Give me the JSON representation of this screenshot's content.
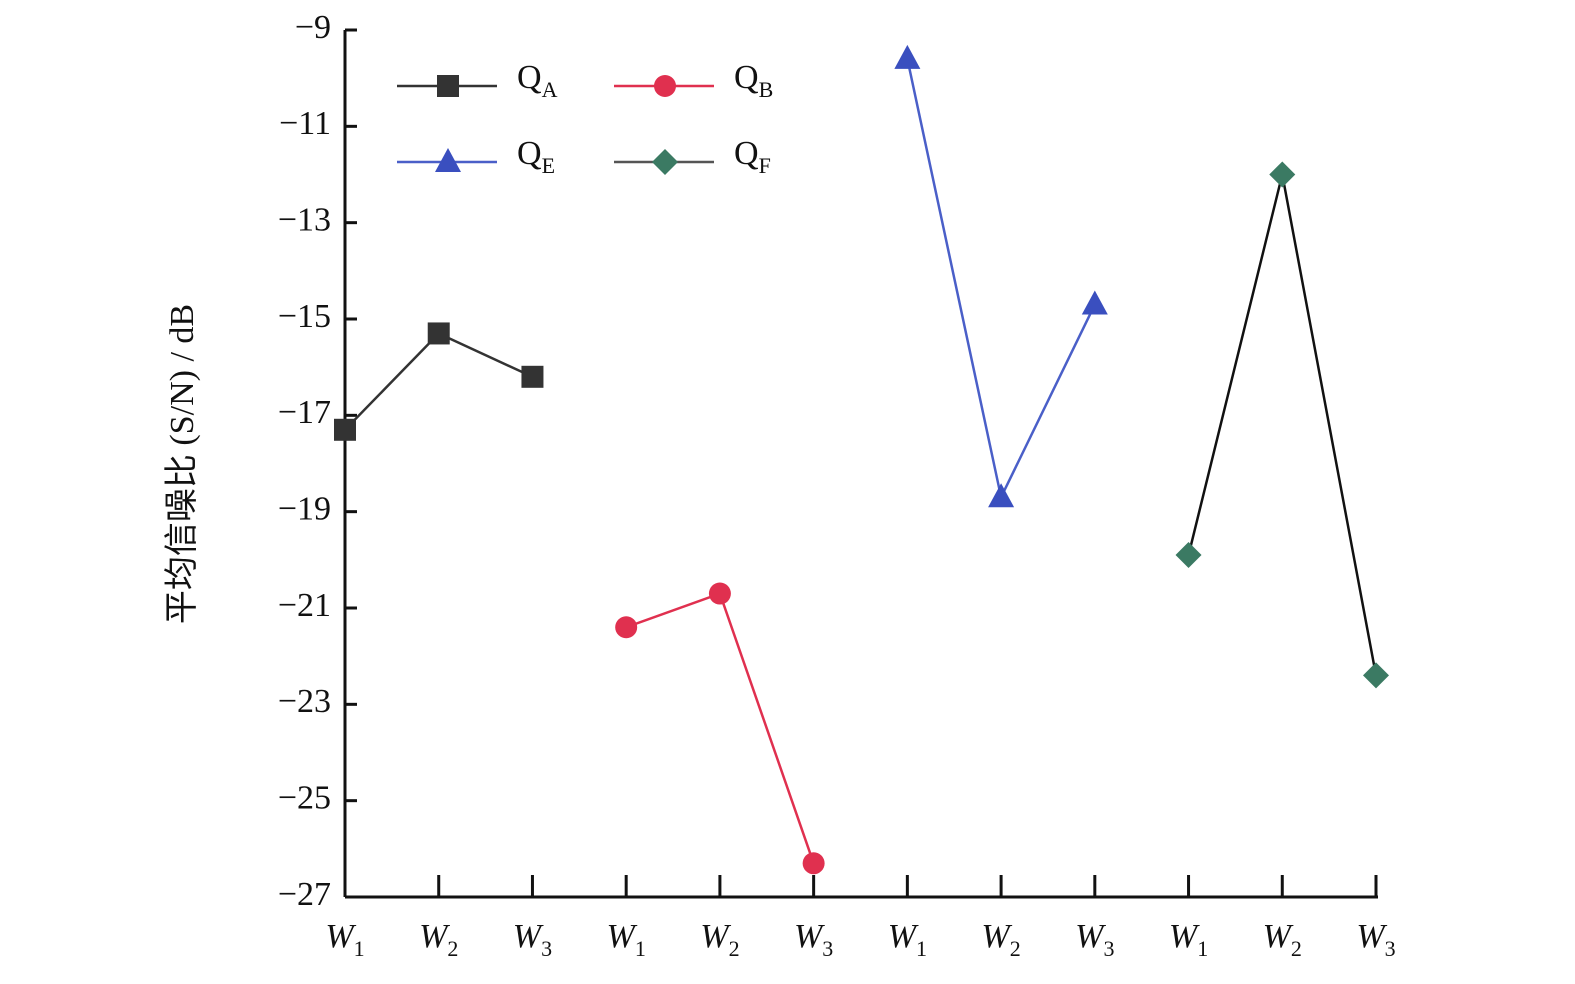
{
  "chart_data": {
    "type": "line",
    "ylabel": "平均信噪比 (S/N) / dB",
    "categories": [
      "W1",
      "W2",
      "W3",
      "W1",
      "W2",
      "W3",
      "W1",
      "W2",
      "W3",
      "W1",
      "W2",
      "W3"
    ],
    "series": [
      {
        "name": "QA",
        "color": "#333333",
        "line_color": "#333333",
        "marker": "square",
        "values": [
          -17.3,
          -15.3,
          -16.2,
          null,
          null,
          null,
          null,
          null,
          null,
          null,
          null,
          null
        ]
      },
      {
        "name": "QB",
        "color": "#e0304f",
        "line_color": "#e0304f",
        "marker": "circle",
        "values": [
          null,
          null,
          null,
          -21.4,
          -20.7,
          -26.3,
          null,
          null,
          null,
          null,
          null,
          null
        ]
      },
      {
        "name": "QE",
        "color": "#3a4fbf",
        "line_color": "#4a5fc8",
        "marker": "triangle",
        "values": [
          null,
          null,
          null,
          null,
          null,
          null,
          -9.6,
          -18.7,
          -14.7,
          null,
          null,
          null
        ]
      },
      {
        "name": "QF",
        "color": "#3b7a63",
        "line_color": "#111111",
        "marker": "diamond",
        "values": [
          null,
          null,
          null,
          null,
          null,
          null,
          null,
          null,
          null,
          -19.9,
          -12.0,
          -22.4
        ]
      }
    ],
    "ylim": [
      -27,
      -9
    ],
    "yticks": [
      {
        "value": -9,
        "label": "−9"
      },
      {
        "value": -11,
        "label": "−11"
      },
      {
        "value": -13,
        "label": "−13"
      },
      {
        "value": -15,
        "label": "−15"
      },
      {
        "value": -17,
        "label": "−17"
      },
      {
        "value": -19,
        "label": "−19"
      },
      {
        "value": -21,
        "label": "−21"
      },
      {
        "value": -23,
        "label": "−23"
      },
      {
        "value": -25,
        "label": "−25"
      },
      {
        "value": -27,
        "label": "−27"
      }
    ],
    "legend": "upper left",
    "grid": false
  }
}
